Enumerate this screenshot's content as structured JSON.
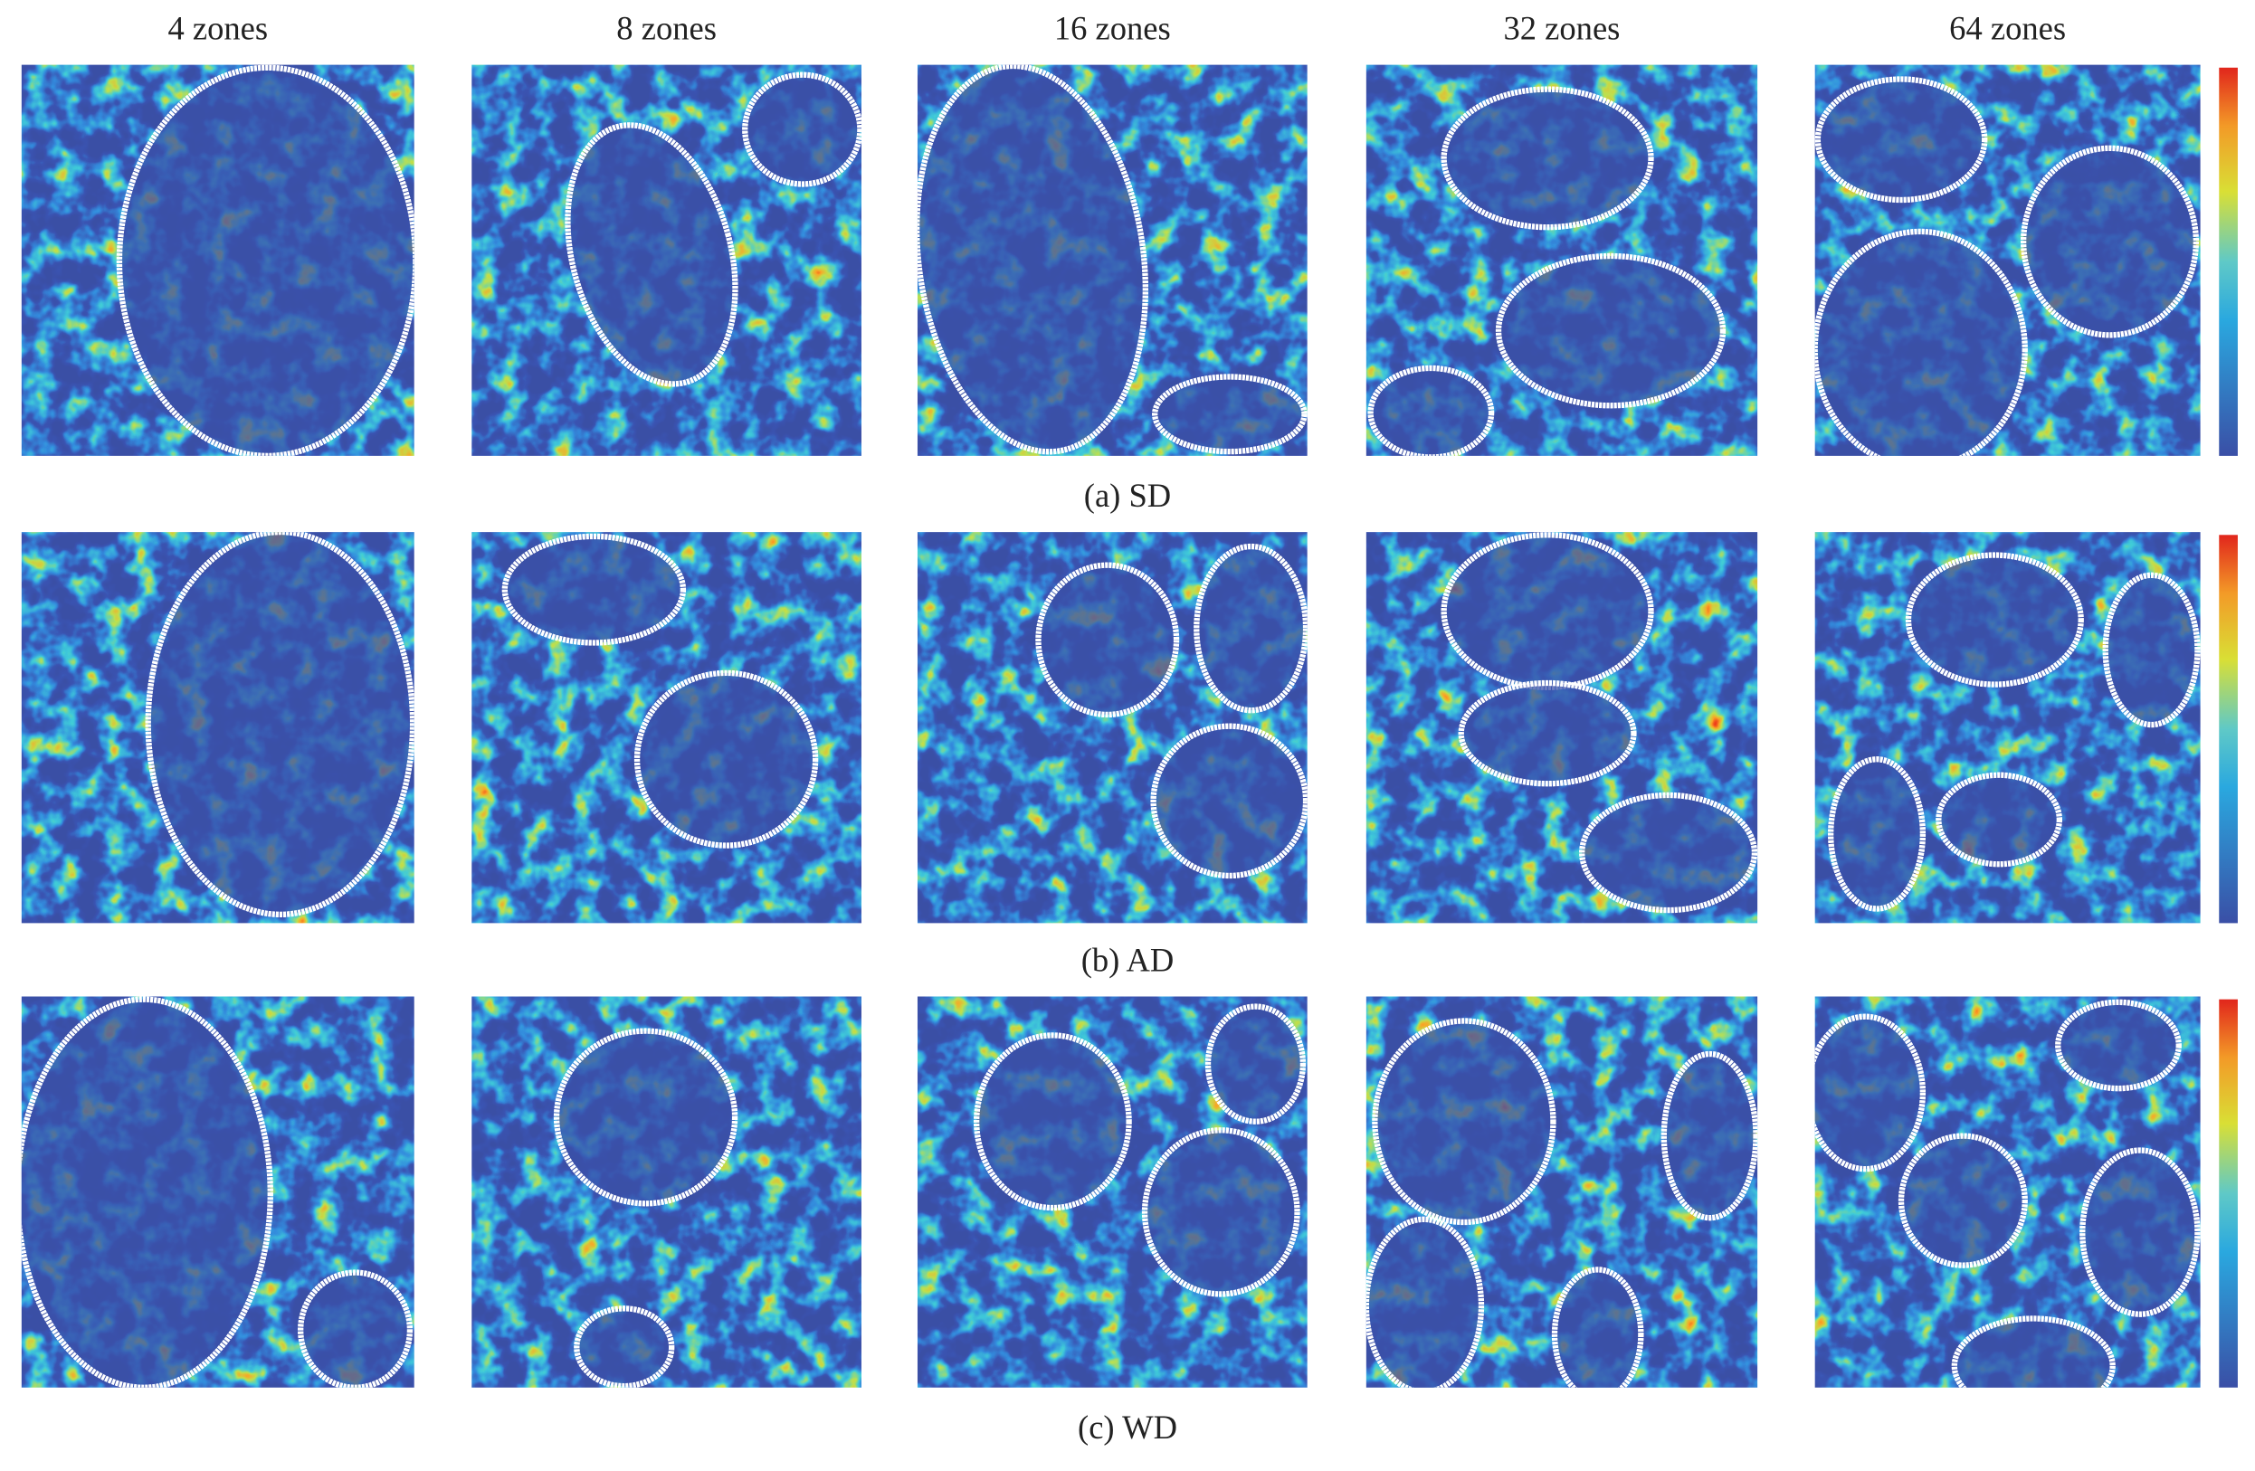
{
  "column_titles": [
    "4 zones",
    "8 zones",
    "16 zones",
    "32 zones",
    "64 zones"
  ],
  "row_captions": [
    "(a) SD",
    "(b) AD",
    "(c) WD"
  ]
}
